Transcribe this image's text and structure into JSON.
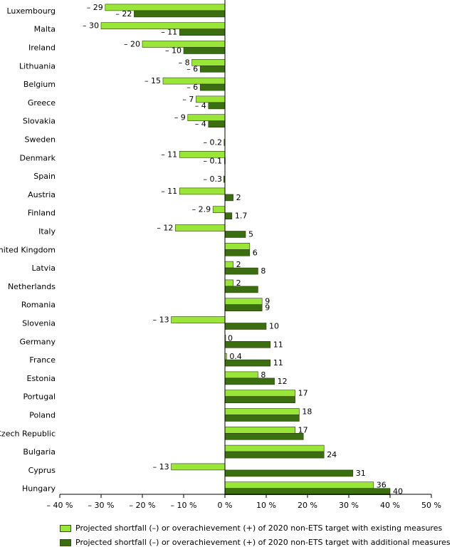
{
  "chart_data": {
    "type": "bar",
    "orientation": "horizontal",
    "categories": [
      "Luxembourg",
      "Malta",
      "Ireland",
      "Lithuania",
      "Belgium",
      "Greece",
      "Slovakia",
      "Sweden",
      "Denmark",
      "Spain",
      "Austria",
      "Finland",
      "Italy",
      "United Kingdom",
      "Latvia",
      "Netherlands",
      "Romania",
      "Slovenia",
      "Germany",
      "France",
      "Estonia",
      "Portugal",
      "Poland",
      "Czech Republic",
      "Bulgaria",
      "Cyprus",
      "Hungary"
    ],
    "series": [
      {
        "name": "Projected shortfall (–) or overachievement (+) of 2020 non-ETS target with existing measures",
        "color": "#99e639",
        "values": [
          -29,
          -30,
          -20,
          -8,
          -15,
          -7,
          -9,
          null,
          -11,
          null,
          -11,
          -2.9,
          -12,
          6,
          2,
          2,
          9,
          -13,
          0,
          0.4,
          8,
          17,
          18,
          17,
          24,
          -13,
          36
        ],
        "labels": [
          "– 29",
          "– 30",
          "– 20",
          "– 8",
          "– 15",
          "– 7",
          "– 9",
          "",
          "– 11",
          "",
          "– 11",
          "– 2.9",
          "– 12",
          "",
          "2",
          "2",
          "9",
          "– 13",
          "0",
          "0.4",
          "8",
          "17",
          "18",
          "17",
          "",
          "– 13",
          "36"
        ]
      },
      {
        "name": "Projected shortfall (–) or overachievement (+) of 2020 non-ETS target with additional measures",
        "color": "#3a6e10",
        "values": [
          -22,
          -11,
          -10,
          -6,
          -6,
          -4,
          -4,
          -0.2,
          -0.1,
          -0.3,
          2,
          1.7,
          5,
          6,
          8,
          8,
          9,
          10,
          11,
          11,
          12,
          17,
          18,
          19,
          24,
          31,
          40
        ],
        "labels": [
          "– 22",
          "– 11",
          "– 10",
          "– 6",
          "– 6",
          "– 4",
          "– 4",
          "– 0.2",
          "– 0.1",
          "– 0.3",
          "2",
          "1.7",
          "5",
          "6",
          "8",
          "",
          "9",
          "10",
          "11",
          "11",
          "12",
          "",
          "",
          "",
          "24",
          "31",
          "40"
        ]
      }
    ],
    "x_ticks": [
      "– 40 %",
      "– 30 %",
      "– 20 %",
      "– 10 %",
      "0 %",
      "10 %",
      "20 %",
      "30 %",
      "40 %",
      "50 %"
    ],
    "xlim": [
      -40,
      50
    ],
    "grid": false,
    "legend_position": "bottom"
  }
}
